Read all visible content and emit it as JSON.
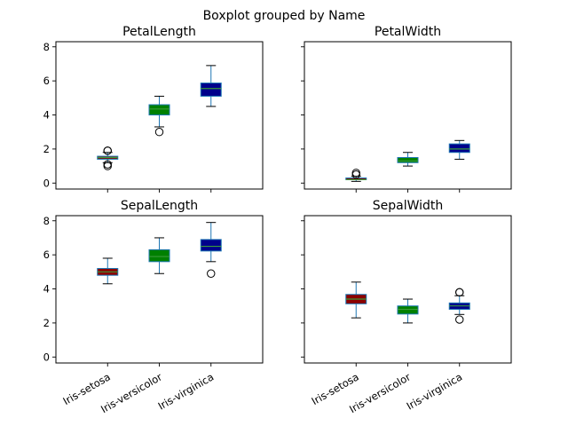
{
  "chart_data": {
    "type": "boxplot",
    "title": "Boxplot grouped by Name",
    "categories": [
      "Iris-setosa",
      "Iris-versicolor",
      "Iris-virginica"
    ],
    "ylim": [
      -0.35,
      8.3
    ],
    "yticks": [
      0,
      2,
      4,
      6,
      8
    ],
    "grid": false,
    "colors": {
      "Iris-setosa": "#8b0000",
      "Iris-versicolor": "#008000",
      "Iris-virginica": "#00008b",
      "whisker": "#1f77b4",
      "median": "#3a9a3a",
      "outlier_edge": "#000000"
    },
    "panels": [
      {
        "title": "PetalLength",
        "boxes": [
          {
            "whislo": 1.2,
            "q1": 1.4,
            "med": 1.5,
            "q3": 1.575,
            "whishi": 1.8,
            "fliers": [
              1.9,
              1.9,
              1.1,
              1.0
            ]
          },
          {
            "whislo": 3.3,
            "q1": 4.0,
            "med": 4.35,
            "q3": 4.6,
            "whishi": 5.1,
            "fliers": [
              3.0
            ]
          },
          {
            "whislo": 4.5,
            "q1": 5.1,
            "med": 5.55,
            "q3": 5.875,
            "whishi": 6.9,
            "fliers": []
          }
        ]
      },
      {
        "title": "PetalWidth",
        "boxes": [
          {
            "whislo": 0.1,
            "q1": 0.2,
            "med": 0.2,
            "q3": 0.3,
            "whishi": 0.4,
            "fliers": [
              0.5,
              0.6
            ]
          },
          {
            "whislo": 1.0,
            "q1": 1.2,
            "med": 1.3,
            "q3": 1.5,
            "whishi": 1.8,
            "fliers": []
          },
          {
            "whislo": 1.4,
            "q1": 1.8,
            "med": 2.0,
            "q3": 2.3,
            "whishi": 2.5,
            "fliers": []
          }
        ]
      },
      {
        "title": "SepalLength",
        "boxes": [
          {
            "whislo": 4.3,
            "q1": 4.8,
            "med": 5.0,
            "q3": 5.2,
            "whishi": 5.8,
            "fliers": []
          },
          {
            "whislo": 4.9,
            "q1": 5.6,
            "med": 5.9,
            "q3": 6.3,
            "whishi": 7.0,
            "fliers": []
          },
          {
            "whislo": 5.6,
            "q1": 6.225,
            "med": 6.5,
            "q3": 6.9,
            "whishi": 7.9,
            "fliers": [
              4.9
            ]
          }
        ]
      },
      {
        "title": "SepalWidth",
        "boxes": [
          {
            "whislo": 2.3,
            "q1": 3.125,
            "med": 3.4,
            "q3": 3.675,
            "whishi": 4.4,
            "fliers": []
          },
          {
            "whislo": 2.0,
            "q1": 2.525,
            "med": 2.8,
            "q3": 3.0,
            "whishi": 3.4,
            "fliers": []
          },
          {
            "whislo": 2.5,
            "q1": 2.8,
            "med": 3.0,
            "q3": 3.175,
            "whishi": 3.6,
            "fliers": [
              3.8,
              3.8,
              2.2
            ]
          }
        ]
      }
    ]
  }
}
